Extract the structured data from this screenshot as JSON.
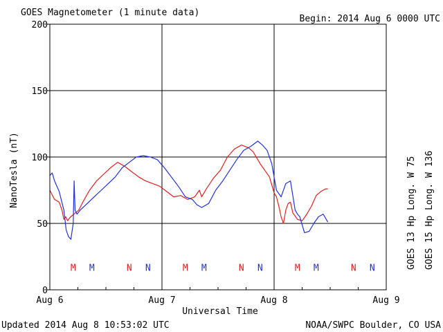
{
  "header": {
    "title": "GOES Magnetometer (1 minute data)",
    "begin": "Begin:  2014 Aug 6 0000 UTC"
  },
  "footer": {
    "updated": "Updated 2014 Aug  8 10:53:02 UTC",
    "credit": "NOAA/SWPC Boulder, CO USA"
  },
  "colors": {
    "goes13": "#dd2020",
    "goes15": "#2030dd",
    "axes": "#000000"
  },
  "chart_data": {
    "type": "line",
    "xlabel": "Universal Time",
    "ylabel": "NanoTesla (nT)",
    "ylim": [
      0,
      200
    ],
    "xlim_hours": [
      0,
      72
    ],
    "yticks": [
      0,
      50,
      100,
      150,
      200
    ],
    "xticks": [
      {
        "hour": 0,
        "label": "Aug 6"
      },
      {
        "hour": 24,
        "label": "Aug 7"
      },
      {
        "hour": 48,
        "label": "Aug 8"
      },
      {
        "hour": 72,
        "label": "Aug 9"
      }
    ],
    "grid": true,
    "legend_placement": "right, vertical",
    "series": [
      {
        "name": "GOES 13 Hp  Long. W 75",
        "color": "#dd2020",
        "hours": [
          0,
          1,
          2,
          2.6,
          3,
          3.4,
          3.8,
          4.2,
          4.8,
          5.5,
          6.2,
          7.2,
          8.5,
          10,
          11.5,
          13,
          14.5,
          16,
          17.5,
          19,
          20.5,
          22,
          23.5,
          25,
          26.5,
          28,
          29.5,
          31,
          32,
          32.5,
          33.5,
          35,
          36.5,
          38,
          39.5,
          41,
          42.5,
          43.5,
          44,
          45,
          46,
          47,
          48,
          48.5,
          49,
          49.5,
          50,
          50.5,
          51,
          51.5,
          52,
          53,
          54,
          55,
          56,
          57,
          58,
          59,
          59.5
        ],
        "values": [
          75,
          68,
          66,
          60,
          53,
          55,
          52,
          54,
          56,
          58,
          60,
          67,
          75,
          82,
          87,
          92,
          96,
          93,
          89,
          85,
          82,
          80,
          78,
          74,
          70,
          71,
          68,
          70,
          75,
          70,
          76,
          84,
          90,
          100,
          106,
          109,
          107,
          104,
          101,
          95,
          90,
          85,
          73,
          70,
          63,
          55,
          50,
          60,
          65,
          66,
          58,
          53,
          52,
          57,
          63,
          71,
          74,
          76,
          76
        ]
      },
      {
        "name": "GOES 15 Hp  Long. W 136",
        "color": "#2030dd",
        "hours": [
          0,
          0.5,
          1,
          2,
          3,
          3.5,
          4,
          4.5,
          5,
          5.2,
          5.4,
          5.8,
          6.5,
          8,
          9.5,
          11,
          12.5,
          14,
          15.5,
          17,
          18.5,
          20,
          21.5,
          23,
          24.5,
          26,
          27.5,
          29,
          30.5,
          31.5,
          32.5,
          34,
          35.5,
          37,
          38.5,
          40,
          41.5,
          43,
          44.5,
          45.5,
          46.5,
          47.5,
          48.5,
          49.5,
          50.5,
          51.5,
          52.5,
          53,
          53.5,
          54.5,
          55.5,
          56.5,
          57.5,
          58.5,
          59.5
        ],
        "values": [
          86,
          88,
          82,
          74,
          60,
          45,
          40,
          38,
          50,
          82,
          60,
          57,
          60,
          65,
          70,
          75,
          80,
          85,
          92,
          96,
          100,
          101,
          100,
          98,
          92,
          85,
          78,
          70,
          68,
          64,
          62,
          65,
          75,
          82,
          90,
          98,
          105,
          108,
          112,
          109,
          105,
          95,
          75,
          70,
          80,
          82,
          60,
          57,
          55,
          43,
          44,
          50,
          55,
          57,
          51
        ]
      }
    ],
    "annotations": {
      "rows": [
        {
          "symbol": "M",
          "series": "GOES 13 Hp  Long. W 75",
          "hours": [
            5,
            29,
            53
          ]
        },
        {
          "symbol": "M",
          "series": "GOES 15 Hp  Long. W 136",
          "hours": [
            9,
            33,
            57
          ]
        },
        {
          "symbol": "N",
          "series": "GOES 13 Hp  Long. W 75",
          "hours": [
            17,
            41,
            65
          ]
        },
        {
          "symbol": "N",
          "series": "GOES 15 Hp  Long. W 136",
          "hours": [
            21,
            45,
            69
          ]
        }
      ],
      "y_value": 17
    }
  }
}
